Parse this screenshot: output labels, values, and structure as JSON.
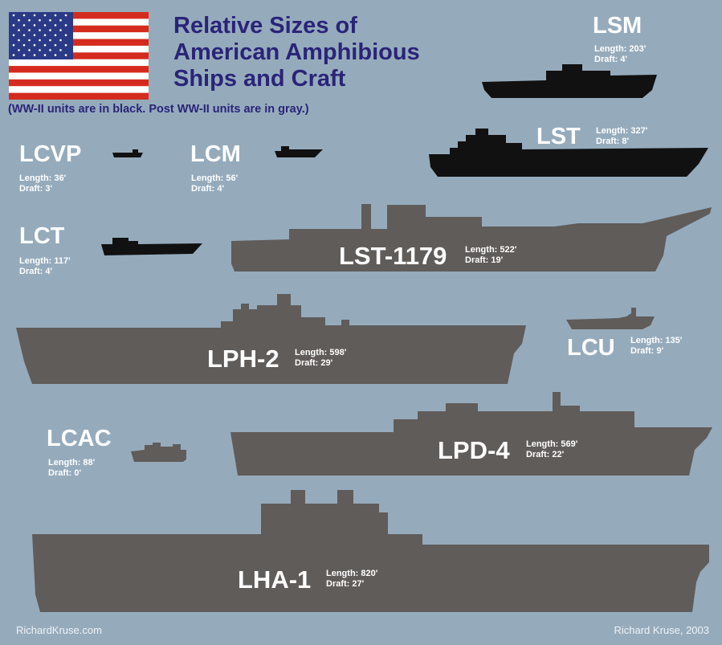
{
  "title_lines": [
    "Relative Sizes of",
    "American Amphibious",
    "Ships and Craft"
  ],
  "subtitle": "(WW-II units are in black.  Post WW-II units are  in gray.)",
  "colors": {
    "background": "#95abbc",
    "ww2": "#111111",
    "post_ww2": "#605c5a",
    "title": "#2a2478"
  },
  "ships": {
    "lsm": {
      "name": "LSM",
      "length": "Length: 203'",
      "draft": "Draft: 4'",
      "era": "ww2"
    },
    "lst": {
      "name": "LST",
      "length": "Length: 327'",
      "draft": "Draft: 8'",
      "era": "ww2"
    },
    "lcvp": {
      "name": "LCVP",
      "length": "Length: 36'",
      "draft": "Draft: 3'",
      "era": "ww2"
    },
    "lcm": {
      "name": "LCM",
      "length": "Length: 56'",
      "draft": "Draft: 4'",
      "era": "ww2"
    },
    "lct": {
      "name": "LCT",
      "length": "Length: 117'",
      "draft": "Draft: 4'",
      "era": "ww2"
    },
    "lst1179": {
      "name": "LST-1179",
      "length": "Length: 522'",
      "draft": "Draft: 19'",
      "era": "post"
    },
    "lph2": {
      "name": "LPH-2",
      "length": "Length: 598'",
      "draft": "Draft: 29'",
      "era": "post"
    },
    "lcu": {
      "name": "LCU",
      "length": "Length: 135'",
      "draft": "Draft: 9'",
      "era": "post"
    },
    "lcac": {
      "name": "LCAC",
      "length": "Length: 88'",
      "draft": "Draft: 0'",
      "era": "post"
    },
    "lpd4": {
      "name": "LPD-4",
      "length": "Length: 569'",
      "draft": "Draft: 22'",
      "era": "post"
    },
    "lha1": {
      "name": "LHA-1",
      "length": "Length: 820'",
      "draft": "Draft: 27'",
      "era": "post"
    }
  },
  "footer": {
    "left": "RichardKruse.com",
    "right": "Richard Kruse, 2003"
  }
}
